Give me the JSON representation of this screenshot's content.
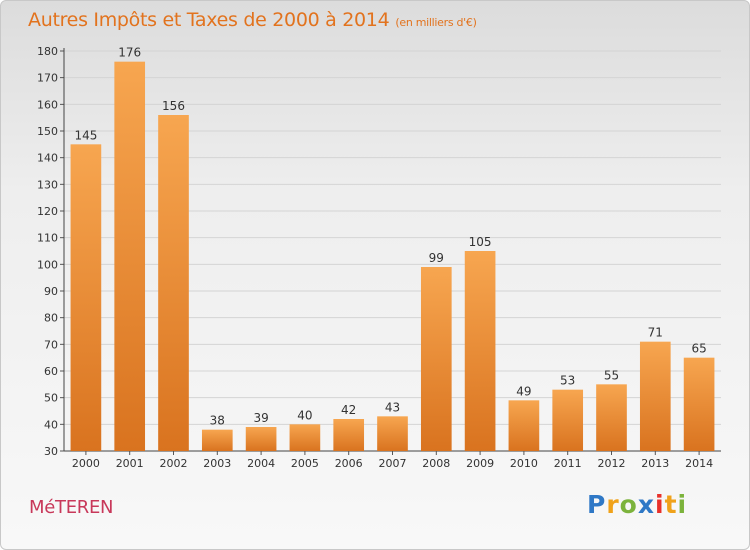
{
  "title": {
    "main": "Autres Impôts et Taxes de 2000 à 2014",
    "sub": "(en milliers d'€)"
  },
  "city": "MéTEREN",
  "logo": {
    "letters": [
      "P",
      "r",
      "o",
      "x",
      "i",
      "t",
      "i"
    ],
    "colors": [
      "#2f78c6",
      "#f0a21a",
      "#7cb33c",
      "#2f78c6",
      "#e8312b",
      "#f0a21a",
      "#7cb33c"
    ]
  },
  "colors": {
    "bar_light": "#f7a650",
    "bar_dark": "#d9731f",
    "title": "#e2731e",
    "city": "#c8385a"
  },
  "chart_data": {
    "type": "bar",
    "categories": [
      "2000",
      "2001",
      "2002",
      "2003",
      "2004",
      "2005",
      "2006",
      "2007",
      "2008",
      "2009",
      "2010",
      "2011",
      "2012",
      "2013",
      "2014"
    ],
    "values": [
      145,
      176,
      156,
      38,
      39,
      40,
      42,
      43,
      99,
      105,
      49,
      53,
      55,
      71,
      65
    ],
    "ylim": [
      30,
      180
    ],
    "yticks": [
      30,
      40,
      50,
      60,
      70,
      80,
      90,
      100,
      110,
      120,
      130,
      140,
      150,
      160,
      170,
      180
    ],
    "grid": true
  }
}
